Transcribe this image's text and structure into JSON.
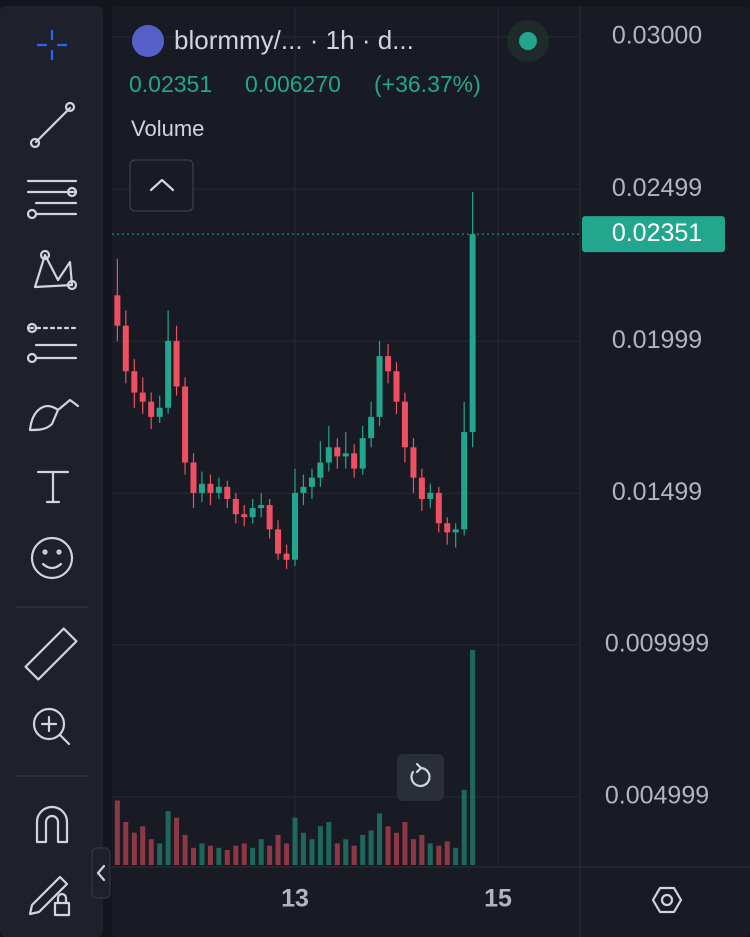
{
  "chart_data": {
    "type": "candlestick",
    "title": "blormmy/... · 1h · d...",
    "last_price": 0.02351,
    "change": "0.006270",
    "change_pct": "(+36.37%)",
    "volume_label": "Volume",
    "up_color": "#22a68d",
    "down_color": "#ef5061",
    "x": [
      11.25,
      11.333,
      11.417,
      11.5,
      11.583,
      11.667,
      11.75,
      11.833,
      11.917,
      12,
      12.083,
      12.167,
      12.25,
      12.333,
      12.417,
      12.5,
      12.583,
      12.667,
      12.75,
      12.833,
      12.917,
      13,
      13.083,
      13.167,
      13.25,
      13.333,
      13.417,
      13.5,
      13.583,
      13.667,
      13.75,
      13.833,
      13.917,
      14,
      14.083,
      14.167,
      14.25,
      14.333,
      14.417,
      14.5,
      14.583,
      14.667,
      14.75
    ],
    "open": [
      0.0215,
      0.0205,
      0.019,
      0.0183,
      0.018,
      0.0175,
      0.0178,
      0.02,
      0.0185,
      0.016,
      0.015,
      0.0153,
      0.015,
      0.0152,
      0.0148,
      0.0143,
      0.0142,
      0.0145,
      0.0146,
      0.0138,
      0.013,
      0.0128,
      0.015,
      0.0152,
      0.0155,
      0.016,
      0.0165,
      0.0162,
      0.0163,
      0.0158,
      0.0168,
      0.0175,
      0.0195,
      0.019,
      0.018,
      0.0165,
      0.0155,
      0.0148,
      0.015,
      0.014,
      0.0137,
      0.0138,
      0.017
    ],
    "high": [
      0.0227,
      0.021,
      0.0194,
      0.0188,
      0.0183,
      0.0182,
      0.021,
      0.0205,
      0.0188,
      0.0163,
      0.0157,
      0.0156,
      0.0155,
      0.0154,
      0.015,
      0.0146,
      0.0148,
      0.015,
      0.0148,
      0.0141,
      0.0133,
      0.0158,
      0.0156,
      0.0158,
      0.0167,
      0.0172,
      0.0168,
      0.017,
      0.0166,
      0.0172,
      0.018,
      0.02,
      0.0199,
      0.0193,
      0.0183,
      0.0168,
      0.0158,
      0.0153,
      0.0152,
      0.0142,
      0.014,
      0.018,
      0.0249
    ],
    "low": [
      0.02,
      0.0186,
      0.0178,
      0.0176,
      0.0171,
      0.0173,
      0.0176,
      0.0182,
      0.0156,
      0.0145,
      0.0147,
      0.0146,
      0.0148,
      0.0145,
      0.014,
      0.0139,
      0.014,
      0.0142,
      0.0135,
      0.0128,
      0.0125,
      0.0126,
      0.0146,
      0.0148,
      0.0152,
      0.0157,
      0.0158,
      0.0158,
      0.0155,
      0.0156,
      0.0165,
      0.0172,
      0.0186,
      0.0176,
      0.016,
      0.015,
      0.0144,
      0.0145,
      0.0137,
      0.0133,
      0.0132,
      0.0136,
      0.0165
    ],
    "close": [
      0.0205,
      0.019,
      0.0183,
      0.018,
      0.0175,
      0.0178,
      0.02,
      0.0185,
      0.016,
      0.015,
      0.0153,
      0.015,
      0.0152,
      0.0148,
      0.0143,
      0.0142,
      0.0145,
      0.0146,
      0.0138,
      0.013,
      0.0128,
      0.015,
      0.0152,
      0.0155,
      0.016,
      0.0165,
      0.0162,
      0.0163,
      0.0158,
      0.0168,
      0.0175,
      0.0195,
      0.019,
      0.018,
      0.0165,
      0.0155,
      0.0148,
      0.015,
      0.014,
      0.0137,
      0.0138,
      0.017,
      0.02351
    ],
    "volume": [
      30,
      20,
      15,
      18,
      12,
      10,
      25,
      22,
      14,
      8,
      10,
      9,
      8,
      7,
      9,
      10,
      8,
      12,
      9,
      14,
      10,
      22,
      15,
      12,
      18,
      20,
      10,
      12,
      9,
      14,
      16,
      24,
      18,
      15,
      20,
      12,
      14,
      10,
      9,
      11,
      8,
      35,
      100
    ],
    "xlim": [
      11.197,
      15.808
    ],
    "xticks": [
      13,
      15
    ],
    "ylim": [
      0.00276,
      0.03095
    ],
    "yticks": [
      0.004999,
      0.009999,
      0.01499,
      0.01999,
      0.02499,
      {
        "value": 0.03,
        "label": "0.03000"
      }
    ],
    "grid": true
  }
}
